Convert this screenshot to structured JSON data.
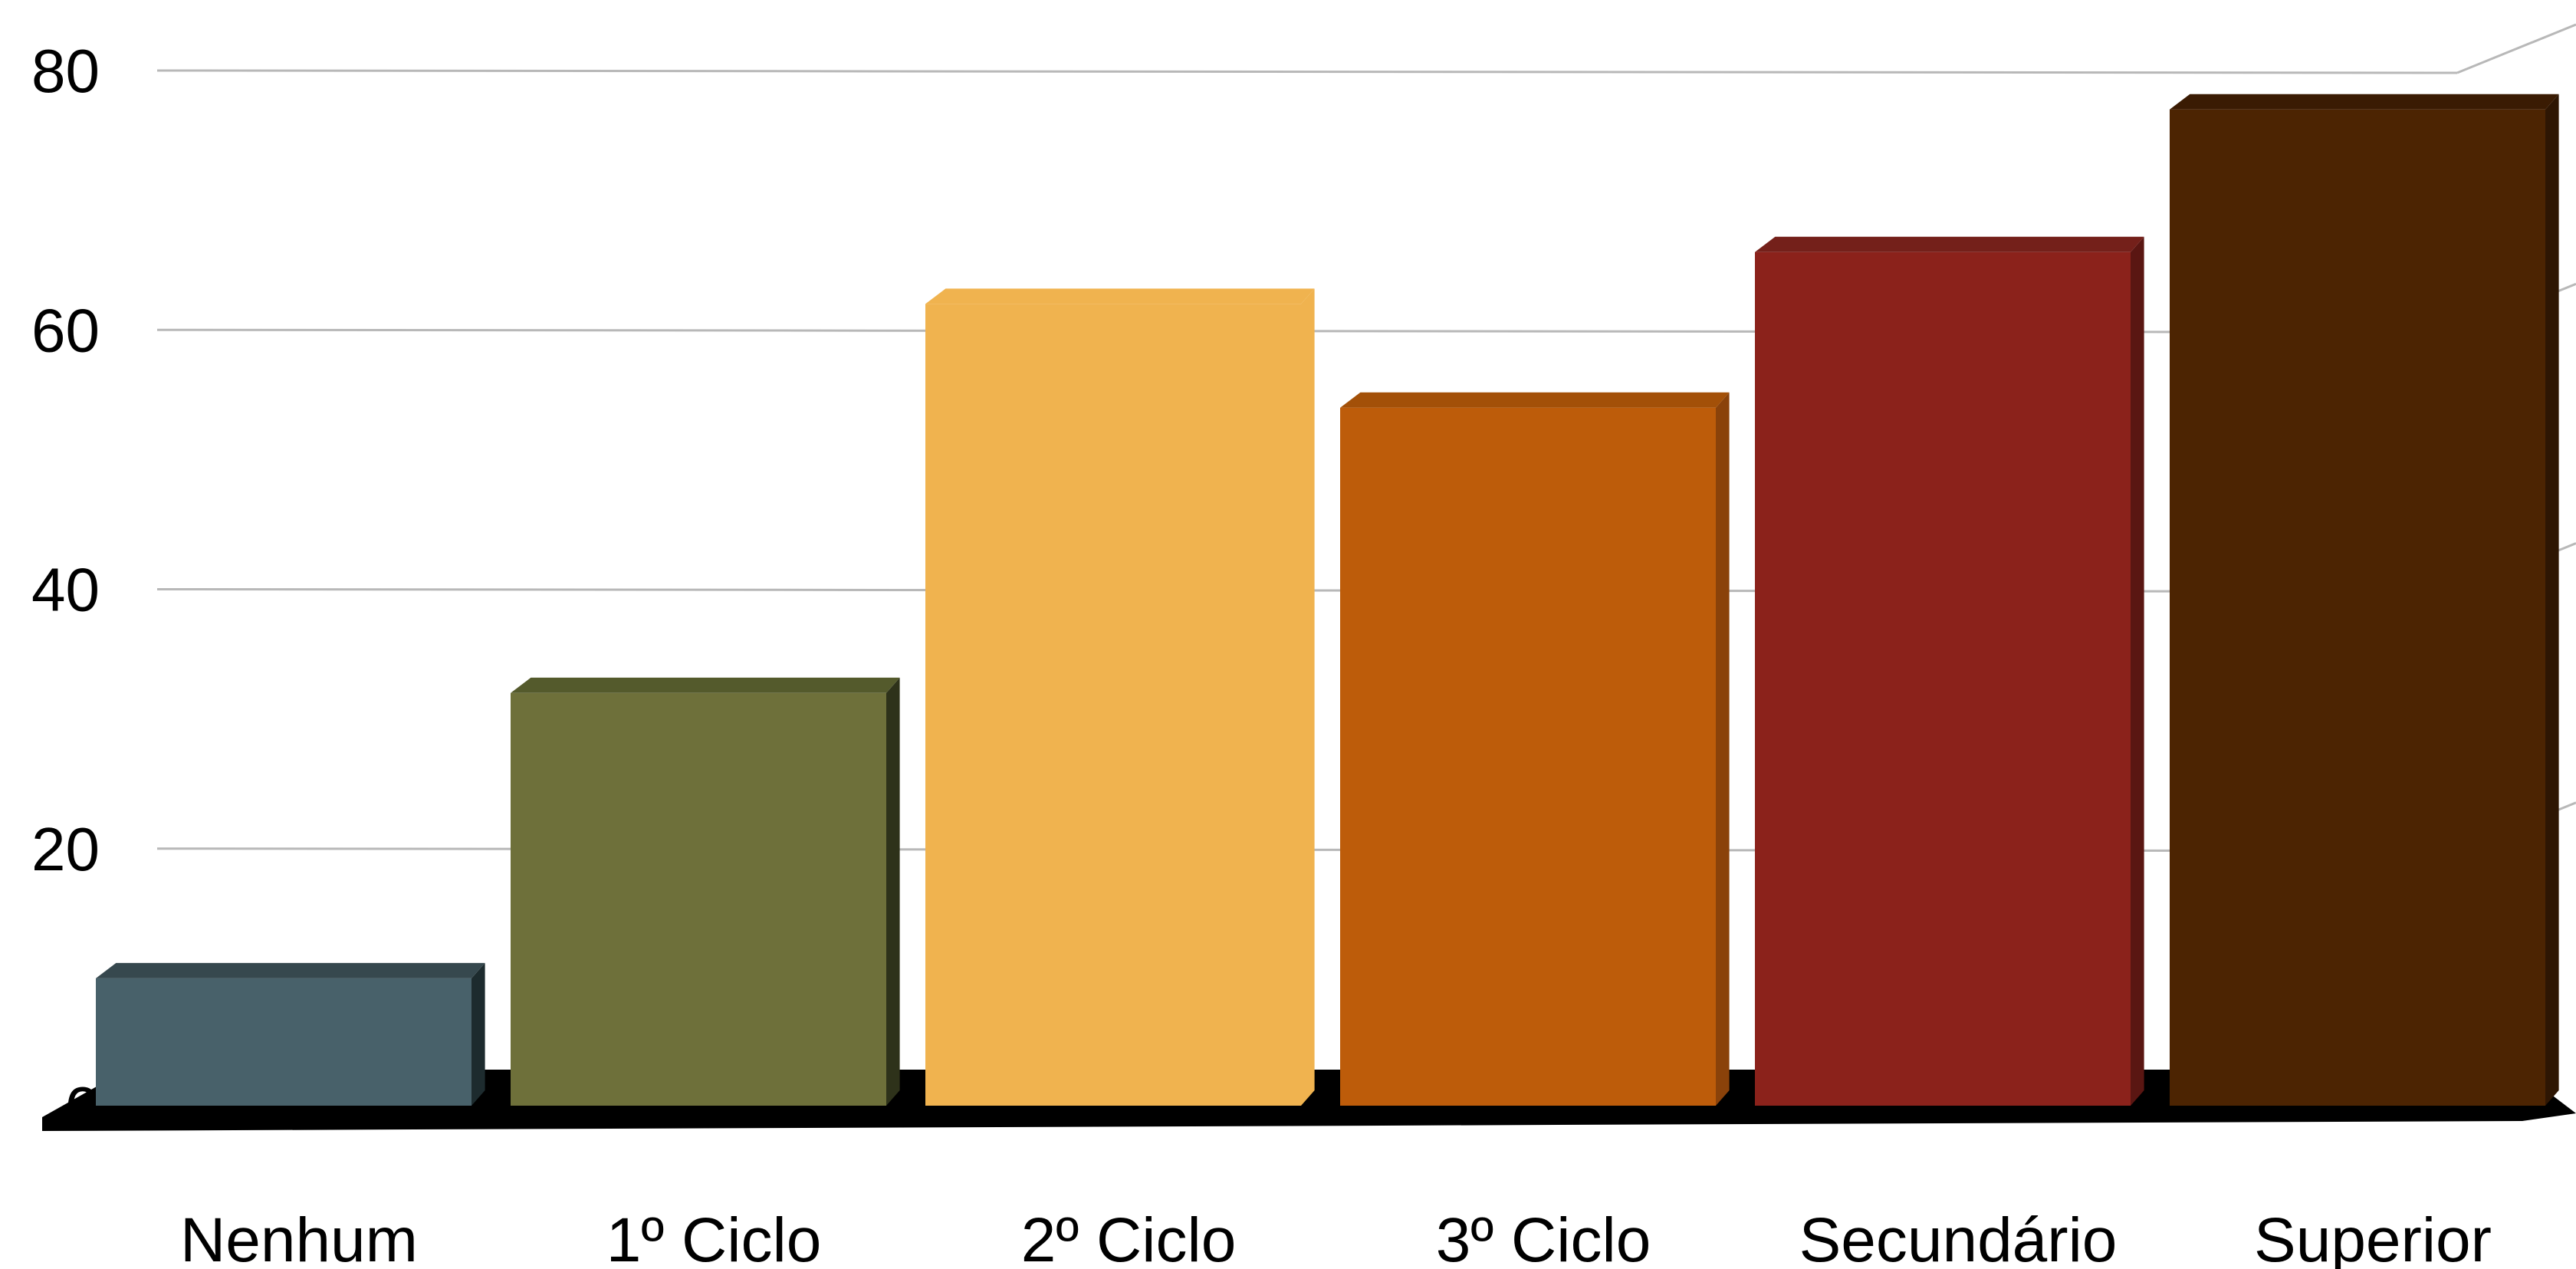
{
  "chart_data": {
    "type": "bar",
    "categories": [
      "Nenhum",
      "1º Ciclo",
      "2º Ciclo",
      "3º Ciclo",
      "Secundário",
      "Superior"
    ],
    "values": [
      10,
      32,
      62,
      54,
      66,
      77
    ],
    "colors": [
      "#48616a",
      "#6e703a",
      "#f0b34f",
      "#bd5c0a",
      "#8b221b",
      "#4c2402"
    ],
    "side_colors": [
      "#1d2b2e",
      "#2e321a",
      "#f0b34f",
      "#8a420a",
      "#5a1612",
      "#2e1603"
    ],
    "top_colors": [
      "#36484e",
      "#545a2c",
      "#f0b34f",
      "#a35008",
      "#74201a",
      "#3a1b03"
    ],
    "ylim": [
      0,
      80
    ],
    "yticks": [
      "0",
      "20",
      "40",
      "60",
      "80"
    ],
    "title": "",
    "xlabel": "",
    "ylabel": "",
    "grid": true,
    "legend": "none",
    "style": "3d"
  }
}
